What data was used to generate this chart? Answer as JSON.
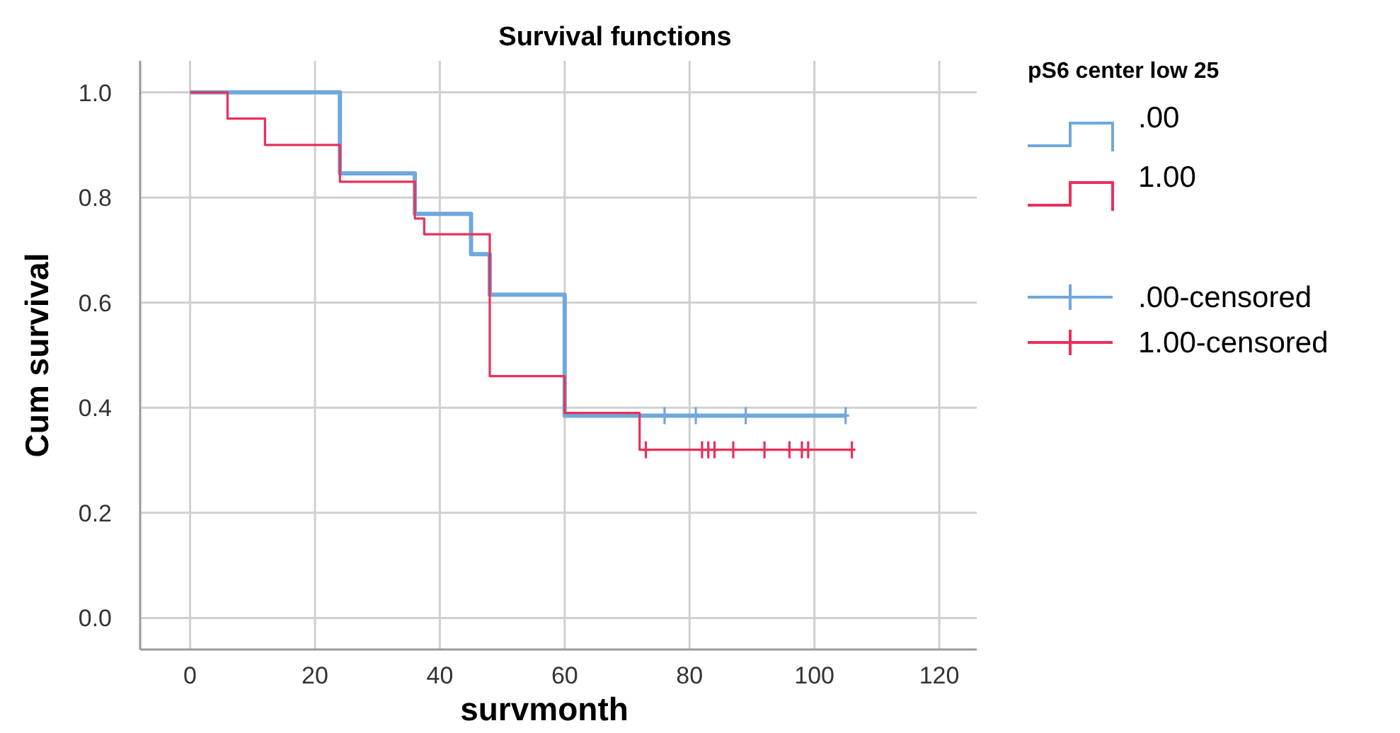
{
  "chart_data": {
    "type": "step",
    "title": "Survival functions",
    "xlabel": "survmonth",
    "ylabel": "Cum survival",
    "legend_title": "pS6 center low 25",
    "xlim": [
      -8,
      126
    ],
    "xticks": [
      0,
      20,
      40,
      60,
      80,
      100,
      120
    ],
    "ylim": [
      -0.06,
      1.06
    ],
    "yticks": [
      {
        "value": 0,
        "label": "0.0"
      },
      {
        "value": 0.2,
        "label": "0.2"
      },
      {
        "value": 0.4,
        "label": "0.4"
      },
      {
        "value": 0.6,
        "label": "0.6"
      },
      {
        "value": 0.8,
        "label": "0.8"
      },
      {
        "value": 1,
        "label": "1.0"
      }
    ],
    "grid": true,
    "legend": "right",
    "series": [
      {
        "name": ".00",
        "color": "#6fa8dc",
        "x": [
          0,
          24,
          36,
          45,
          48,
          60,
          105
        ],
        "values": [
          1,
          0.846,
          0.769,
          0.692,
          0.615,
          0.385,
          0.385
        ]
      },
      {
        "name": "1.00",
        "color": "#e8315a",
        "x": [
          0,
          6,
          12,
          24,
          36,
          37.5,
          48,
          60,
          72,
          106
        ],
        "values": [
          1,
          0.95,
          0.9,
          0.83,
          0.76,
          0.73,
          0.46,
          0.39,
          0.32,
          0.32
        ]
      },
      {
        "name": ".00-censored",
        "type": "scatter",
        "marker": "cross",
        "color": "#6fa8dc",
        "x": [
          76,
          81,
          89,
          105
        ],
        "values": [
          0.385,
          0.385,
          0.385,
          0.385
        ]
      },
      {
        "name": "1.00-censored",
        "type": "scatter",
        "marker": "cross",
        "color": "#e8315a",
        "x": [
          73,
          82,
          83,
          84,
          87,
          92,
          96,
          98,
          99,
          106
        ],
        "values": [
          0.32,
          0.32,
          0.32,
          0.32,
          0.32,
          0.32,
          0.32,
          0.32,
          0.32,
          0.32
        ]
      }
    ]
  }
}
